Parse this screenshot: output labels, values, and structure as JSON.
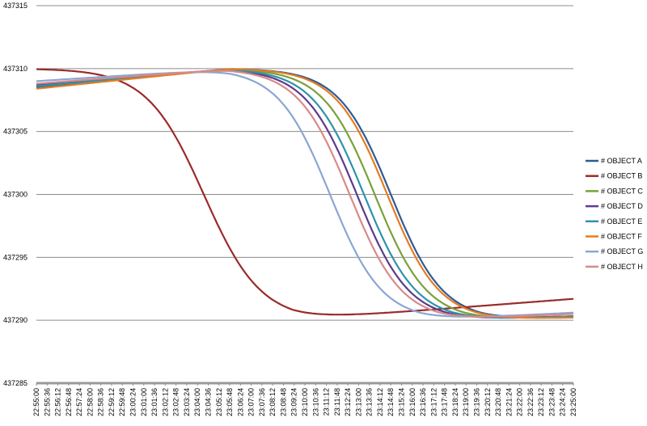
{
  "chart_data": {
    "type": "line",
    "title": "",
    "xlabel": "",
    "ylabel": "",
    "ylim": [
      437285,
      437315
    ],
    "yticks": [
      437285,
      437290,
      437295,
      437300,
      437305,
      437310,
      437315
    ],
    "grid": "horizontal",
    "legend_position": "right",
    "x_range": [
      "22:55:00",
      "23:25:00"
    ],
    "x_step_seconds": 36,
    "series": [
      {
        "name": "# OBJECT A",
        "color": "#2f5b92",
        "start": 437308.5,
        "mid": 437310.0,
        "midtime": "23:05:48",
        "t0": "23:14:48",
        "k": 0.0115,
        "low": 437290.0,
        "end": 437290.3
      },
      {
        "name": "# OBJECT B",
        "color": "#9b2a2a",
        "start": 437310.0,
        "mid": 437310.0,
        "midtime": "22:58:00",
        "t0": "23:04:21",
        "k": 0.0105,
        "low": 437290.0,
        "end": 437291.7
      },
      {
        "name": "# OBJECT C",
        "color": "#7aa03a",
        "start": 437308.6,
        "mid": 437310.0,
        "midtime": "23:05:48",
        "t0": "23:13:54",
        "k": 0.0115,
        "low": 437290.0,
        "end": 437290.3
      },
      {
        "name": "# OBJECT D",
        "color": "#5d3a8c",
        "start": 437308.7,
        "mid": 437310.0,
        "midtime": "23:05:48",
        "t0": "23:12:54",
        "k": 0.0115,
        "low": 437290.0,
        "end": 437290.3
      },
      {
        "name": "# OBJECT E",
        "color": "#2f93a8",
        "start": 437308.6,
        "mid": 437310.0,
        "midtime": "23:05:48",
        "t0": "23:13:18",
        "k": 0.0115,
        "low": 437290.0,
        "end": 437290.3
      },
      {
        "name": "# OBJECT F",
        "color": "#e57c22",
        "start": 437308.4,
        "mid": 437310.0,
        "midtime": "23:05:48",
        "t0": "23:14:36",
        "k": 0.0115,
        "low": 437290.0,
        "end": 437290.2
      },
      {
        "name": "# OBJECT G",
        "color": "#8aa6d2",
        "start": 437309.0,
        "mid": 437310.0,
        "midtime": "23:05:48",
        "t0": "23:11:24",
        "k": 0.0115,
        "low": 437290.0,
        "end": 437290.6
      },
      {
        "name": "# OBJECT H",
        "color": "#d88a88",
        "start": 437308.8,
        "mid": 437310.0,
        "midtime": "23:05:48",
        "t0": "23:12:30",
        "k": 0.0115,
        "low": 437290.0,
        "end": 437290.5
      }
    ]
  }
}
